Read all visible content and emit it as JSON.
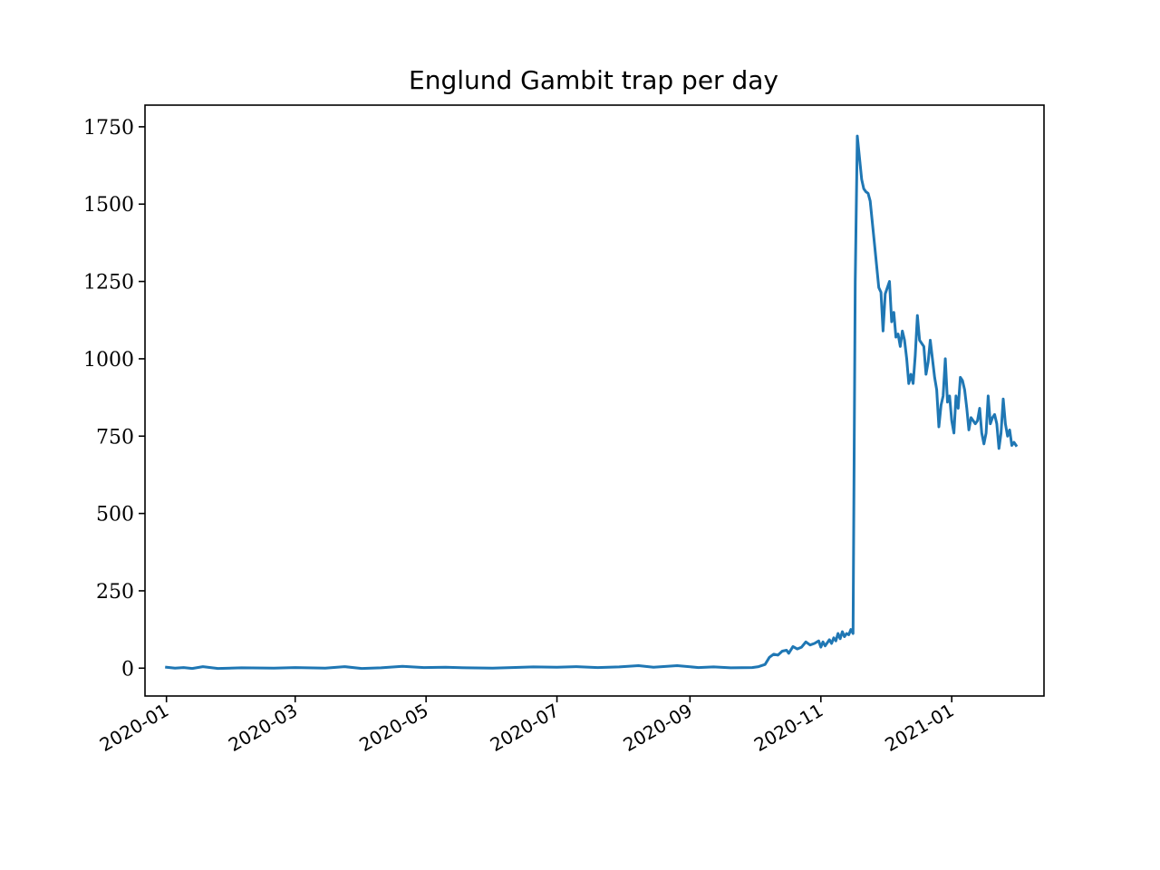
{
  "chart_data": {
    "type": "line",
    "title": "Englund Gambit trap per day",
    "xlabel": "",
    "ylabel": "",
    "x_type": "date",
    "xlim": [
      "2019-12-22",
      "2021-02-13"
    ],
    "ylim": [
      -90,
      1820
    ],
    "grid": false,
    "yticks": [
      0,
      250,
      500,
      750,
      1000,
      1250,
      1500,
      1750
    ],
    "xticks": [
      "2020-01-01",
      "2020-03-01",
      "2020-05-01",
      "2020-07-01",
      "2020-09-01",
      "2020-11-01",
      "2021-01-01"
    ],
    "xtick_labels": [
      "2020-01",
      "2020-03",
      "2020-05",
      "2020-07",
      "2020-09",
      "2020-11",
      "2021-01"
    ],
    "series": [
      {
        "color": "#1f77b4",
        "points": [
          [
            "2020-01-01",
            3
          ],
          [
            "2020-01-05",
            0
          ],
          [
            "2020-01-09",
            2
          ],
          [
            "2020-01-13",
            -1
          ],
          [
            "2020-01-18",
            5
          ],
          [
            "2020-01-25",
            -1
          ],
          [
            "2020-02-05",
            1
          ],
          [
            "2020-02-20",
            0
          ],
          [
            "2020-03-01",
            2
          ],
          [
            "2020-03-15",
            0
          ],
          [
            "2020-03-24",
            5
          ],
          [
            "2020-04-01",
            -1
          ],
          [
            "2020-04-10",
            1
          ],
          [
            "2020-04-20",
            6
          ],
          [
            "2020-04-30",
            2
          ],
          [
            "2020-05-10",
            3
          ],
          [
            "2020-05-20",
            1
          ],
          [
            "2020-06-01",
            0
          ],
          [
            "2020-06-10",
            2
          ],
          [
            "2020-06-20",
            4
          ],
          [
            "2020-07-01",
            3
          ],
          [
            "2020-07-10",
            5
          ],
          [
            "2020-07-20",
            2
          ],
          [
            "2020-07-30",
            4
          ],
          [
            "2020-08-08",
            8
          ],
          [
            "2020-08-15",
            3
          ],
          [
            "2020-08-26",
            8
          ],
          [
            "2020-09-05",
            2
          ],
          [
            "2020-09-12",
            4
          ],
          [
            "2020-09-20",
            1
          ],
          [
            "2020-09-30",
            2
          ],
          [
            "2020-10-03",
            5
          ],
          [
            "2020-10-06",
            12
          ],
          [
            "2020-10-08",
            35
          ],
          [
            "2020-10-10",
            45
          ],
          [
            "2020-10-12",
            42
          ],
          [
            "2020-10-14",
            55
          ],
          [
            "2020-10-16",
            58
          ],
          [
            "2020-10-17",
            48
          ],
          [
            "2020-10-19",
            70
          ],
          [
            "2020-10-21",
            62
          ],
          [
            "2020-10-23",
            68
          ],
          [
            "2020-10-25",
            85
          ],
          [
            "2020-10-27",
            75
          ],
          [
            "2020-10-29",
            80
          ],
          [
            "2020-10-31",
            88
          ],
          [
            "2020-11-01",
            68
          ],
          [
            "2020-11-02",
            85
          ],
          [
            "2020-11-03",
            72
          ],
          [
            "2020-11-05",
            92
          ],
          [
            "2020-11-06",
            80
          ],
          [
            "2020-11-07",
            98
          ],
          [
            "2020-11-08",
            88
          ],
          [
            "2020-11-09",
            112
          ],
          [
            "2020-11-10",
            95
          ],
          [
            "2020-11-11",
            118
          ],
          [
            "2020-11-12",
            102
          ],
          [
            "2020-11-13",
            112
          ],
          [
            "2020-11-14",
            108
          ],
          [
            "2020-11-15",
            125
          ],
          [
            "2020-11-16",
            112
          ],
          [
            "2020-11-17",
            1250
          ],
          [
            "2020-11-18",
            1720
          ],
          [
            "2020-11-19",
            1650
          ],
          [
            "2020-11-20",
            1580
          ],
          [
            "2020-11-21",
            1550
          ],
          [
            "2020-11-22",
            1540
          ],
          [
            "2020-11-23",
            1535
          ],
          [
            "2020-11-24",
            1510
          ],
          [
            "2020-11-26",
            1370
          ],
          [
            "2020-11-28",
            1230
          ],
          [
            "2020-11-29",
            1215
          ],
          [
            "2020-11-30",
            1090
          ],
          [
            "2020-12-01",
            1210
          ],
          [
            "2020-12-03",
            1250
          ],
          [
            "2020-12-04",
            1120
          ],
          [
            "2020-12-05",
            1150
          ],
          [
            "2020-12-06",
            1070
          ],
          [
            "2020-12-07",
            1080
          ],
          [
            "2020-12-08",
            1040
          ],
          [
            "2020-12-09",
            1090
          ],
          [
            "2020-12-10",
            1060
          ],
          [
            "2020-12-11",
            1000
          ],
          [
            "2020-12-12",
            920
          ],
          [
            "2020-12-13",
            950
          ],
          [
            "2020-12-14",
            920
          ],
          [
            "2020-12-15",
            1010
          ],
          [
            "2020-12-16",
            1140
          ],
          [
            "2020-12-17",
            1060
          ],
          [
            "2020-12-19",
            1040
          ],
          [
            "2020-12-20",
            950
          ],
          [
            "2020-12-21",
            990
          ],
          [
            "2020-12-22",
            1060
          ],
          [
            "2020-12-24",
            940
          ],
          [
            "2020-12-25",
            900
          ],
          [
            "2020-12-26",
            780
          ],
          [
            "2020-12-27",
            850
          ],
          [
            "2020-12-28",
            880
          ],
          [
            "2020-12-29",
            1000
          ],
          [
            "2020-12-30",
            860
          ],
          [
            "2020-12-31",
            880
          ],
          [
            "2021-01-01",
            800
          ],
          [
            "2021-01-02",
            760
          ],
          [
            "2021-01-03",
            880
          ],
          [
            "2021-01-04",
            840
          ],
          [
            "2021-01-05",
            940
          ],
          [
            "2021-01-06",
            930
          ],
          [
            "2021-01-07",
            900
          ],
          [
            "2021-01-08",
            840
          ],
          [
            "2021-01-09",
            770
          ],
          [
            "2021-01-10",
            810
          ],
          [
            "2021-01-12",
            790
          ],
          [
            "2021-01-13",
            800
          ],
          [
            "2021-01-14",
            840
          ],
          [
            "2021-01-15",
            760
          ],
          [
            "2021-01-16",
            725
          ],
          [
            "2021-01-17",
            760
          ],
          [
            "2021-01-18",
            880
          ],
          [
            "2021-01-19",
            790
          ],
          [
            "2021-01-20",
            810
          ],
          [
            "2021-01-21",
            820
          ],
          [
            "2021-01-22",
            790
          ],
          [
            "2021-01-23",
            710
          ],
          [
            "2021-01-24",
            760
          ],
          [
            "2021-01-25",
            870
          ],
          [
            "2021-01-26",
            790
          ],
          [
            "2021-01-27",
            750
          ],
          [
            "2021-01-28",
            770
          ],
          [
            "2021-01-29",
            720
          ],
          [
            "2021-01-30",
            730
          ],
          [
            "2021-01-31",
            720
          ]
        ]
      }
    ]
  }
}
